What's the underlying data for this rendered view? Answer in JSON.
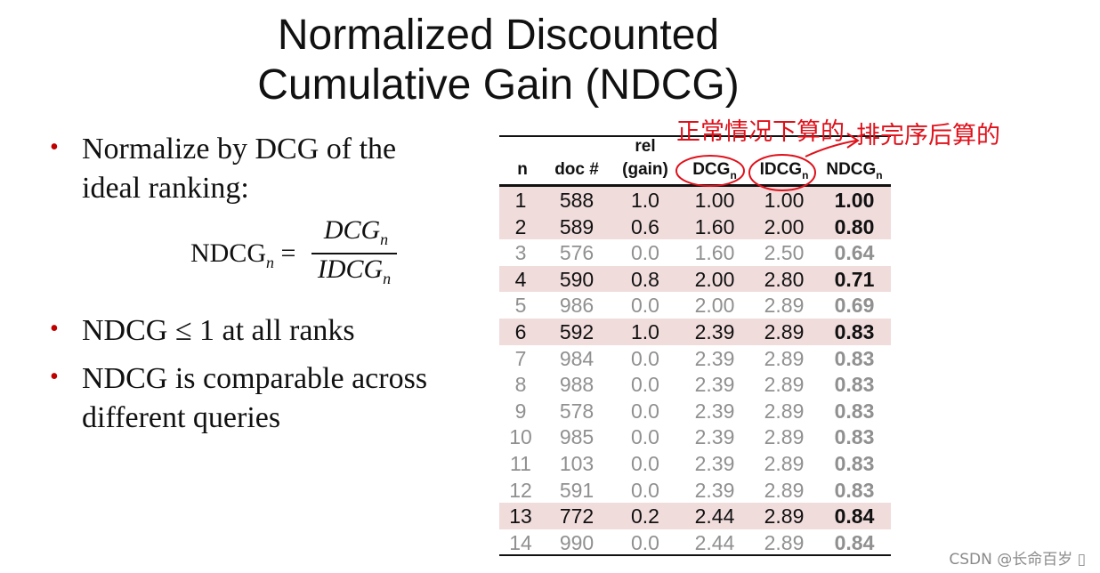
{
  "title": {
    "line1": "Normalized Discounted",
    "line2": "Cumulative Gain (NDCG)"
  },
  "bullets": [
    {
      "line1": "Normalize by DCG of the",
      "line2": "ideal ranking:"
    },
    {
      "line1": "NDCG ≤ 1 at all ranks"
    },
    {
      "line1": "NDCG is comparable across",
      "line2": "different queries"
    }
  ],
  "formula": {
    "lhs": "NDCG",
    "sub": "n",
    "equals": " =",
    "numerator": "DCG",
    "denominator": "IDCG"
  },
  "table": {
    "headers": {
      "n": "n",
      "doc": "doc #",
      "rel_line1": "rel",
      "rel_line2": "(gain)",
      "dcg": "DCG",
      "idcg": "IDCG",
      "ndcg": "NDCG",
      "sub": "n"
    },
    "rows": [
      {
        "n": "1",
        "doc": "588",
        "rel": "1.0",
        "dcg": "1.00",
        "idcg": "1.00",
        "ndcg": "1.00",
        "highlight": true
      },
      {
        "n": "2",
        "doc": "589",
        "rel": "0.6",
        "dcg": "1.60",
        "idcg": "2.00",
        "ndcg": "0.80",
        "highlight": true
      },
      {
        "n": "3",
        "doc": "576",
        "rel": "0.0",
        "dcg": "1.60",
        "idcg": "2.50",
        "ndcg": "0.64",
        "highlight": false
      },
      {
        "n": "4",
        "doc": "590",
        "rel": "0.8",
        "dcg": "2.00",
        "idcg": "2.80",
        "ndcg": "0.71",
        "highlight": true
      },
      {
        "n": "5",
        "doc": "986",
        "rel": "0.0",
        "dcg": "2.00",
        "idcg": "2.89",
        "ndcg": "0.69",
        "highlight": false
      },
      {
        "n": "6",
        "doc": "592",
        "rel": "1.0",
        "dcg": "2.39",
        "idcg": "2.89",
        "ndcg": "0.83",
        "highlight": true
      },
      {
        "n": "7",
        "doc": "984",
        "rel": "0.0",
        "dcg": "2.39",
        "idcg": "2.89",
        "ndcg": "0.83",
        "highlight": false
      },
      {
        "n": "8",
        "doc": "988",
        "rel": "0.0",
        "dcg": "2.39",
        "idcg": "2.89",
        "ndcg": "0.83",
        "highlight": false
      },
      {
        "n": "9",
        "doc": "578",
        "rel": "0.0",
        "dcg": "2.39",
        "idcg": "2.89",
        "ndcg": "0.83",
        "highlight": false
      },
      {
        "n": "10",
        "doc": "985",
        "rel": "0.0",
        "dcg": "2.39",
        "idcg": "2.89",
        "ndcg": "0.83",
        "highlight": false
      },
      {
        "n": "11",
        "doc": "103",
        "rel": "0.0",
        "dcg": "2.39",
        "idcg": "2.89",
        "ndcg": "0.83",
        "highlight": false
      },
      {
        "n": "12",
        "doc": "591",
        "rel": "0.0",
        "dcg": "2.39",
        "idcg": "2.89",
        "ndcg": "0.83",
        "highlight": false
      },
      {
        "n": "13",
        "doc": "772",
        "rel": "0.2",
        "dcg": "2.44",
        "idcg": "2.89",
        "ndcg": "0.84",
        "highlight": true
      },
      {
        "n": "14",
        "doc": "990",
        "rel": "0.0",
        "dcg": "2.44",
        "idcg": "2.89",
        "ndcg": "0.84",
        "highlight": false
      }
    ]
  },
  "annotations": {
    "left_note": "正常情况下算的",
    "right_note": "排完序后算的",
    "color": "#e0101a"
  },
  "colors": {
    "highlight_row": "#f1dcdc",
    "dim_text": "#909090",
    "bullet_dot": "#c00000"
  },
  "watermark": "CSDN @长命百岁 ▯"
}
